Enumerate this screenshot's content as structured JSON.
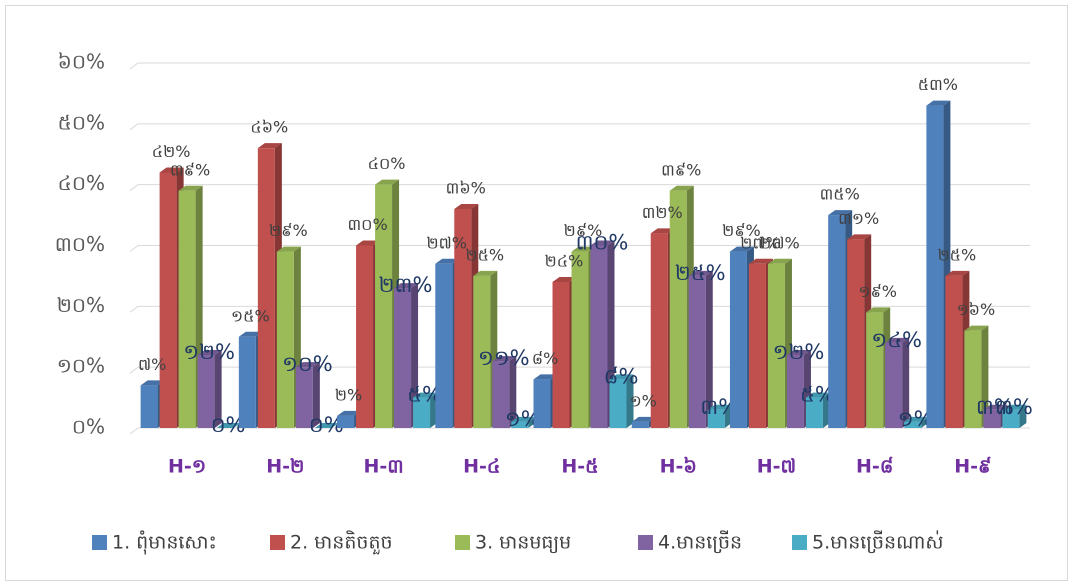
{
  "chart_data": {
    "type": "bar",
    "categories": [
      "H-១",
      "H-២",
      "H-៣",
      "H-៤",
      "H-៥",
      "H-៦",
      "H-៧",
      "H-៨",
      "H-៩"
    ],
    "series": [
      {
        "name": "1. ពុំមានសោះ",
        "color": "#4f81bd",
        "values": [
          7,
          15,
          2,
          27,
          8,
          1,
          29,
          35,
          53
        ],
        "value_labels": [
          "៧%",
          "១៥%",
          "២%",
          "២៧%",
          "៨%",
          "១%",
          "២៩%",
          "៣៥%",
          "៥៣%"
        ]
      },
      {
        "name": "2. មានតិចតួច",
        "color": "#c0504d",
        "values": [
          42,
          46,
          30,
          36,
          24,
          32,
          27,
          31,
          25
        ],
        "value_labels": [
          "៤២%",
          "៤៦%",
          "៣០%",
          "៣៦%",
          "២៤%",
          "៣២%",
          "២៧%",
          "៣១%",
          "២៥%"
        ]
      },
      {
        "name": "3. មានមធ្យម",
        "color": "#9bbb59",
        "values": [
          39,
          29,
          40,
          25,
          29,
          39,
          27,
          19,
          16
        ],
        "value_labels": [
          "៣៩%",
          "២៩%",
          "៤០%",
          "២៥%",
          "២៩%",
          "៣៩%",
          "២៧%",
          "១៩%",
          "១៦%"
        ]
      },
      {
        "name": "4.មានច្រើន",
        "color": "#8064a2",
        "values": [
          12,
          10,
          23,
          11,
          30,
          25,
          12,
          14,
          3
        ],
        "value_labels": [
          "១២%",
          "១០%",
          "២៣%",
          "១១%",
          "៣០%",
          "២៥%",
          "១២%",
          "១៤%",
          "៣%"
        ]
      },
      {
        "name": "5.មានច្រើនណាស់",
        "color": "#4bacc6",
        "values": [
          0,
          0,
          5,
          1,
          8,
          3,
          5,
          1,
          3
        ],
        "value_labels": [
          "០%",
          "០%",
          "៥%",
          "១%",
          "៨%",
          "៣%",
          "៥%",
          "១%",
          "៣%"
        ]
      }
    ],
    "ylim": [
      0,
      60
    ],
    "yticks": [
      {
        "value": 0,
        "label": "០%"
      },
      {
        "value": 10,
        "label": "១០%"
      },
      {
        "value": 20,
        "label": "២០%"
      },
      {
        "value": 30,
        "label": "៣០%"
      },
      {
        "value": 40,
        "label": "៤០%"
      },
      {
        "value": 50,
        "label": "៥០%"
      },
      {
        "value": 60,
        "label": "៦០%"
      }
    ],
    "grid": true,
    "legend": "bottom"
  }
}
